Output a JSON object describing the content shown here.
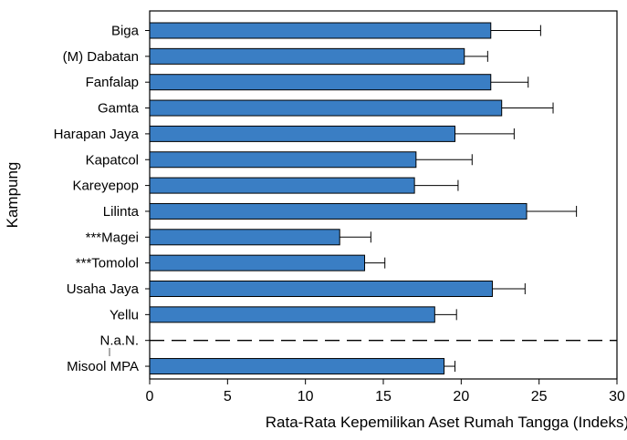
{
  "chart_data": {
    "type": "bar",
    "orientation": "horizontal",
    "title": "",
    "xlabel": "Rata-Rata Kepemilikan Aset Rumah Tangga (Indeks)",
    "ylabel": "Kampung",
    "xlim": [
      0,
      30
    ],
    "xticks": [
      0,
      5,
      10,
      15,
      20,
      25,
      30
    ],
    "grid": false,
    "legend": "none",
    "bar_color": "#3a7ec4",
    "categories": [
      "Biga",
      "(M) Dabatan",
      "Fanfalap",
      "Gamta",
      "Harapan Jaya",
      "Kapatcol",
      "Kareyepop",
      "Lilinta",
      "***Magei",
      "***Tomolol",
      "Usaha Jaya",
      "Yellu",
      "N.a.N.",
      "Misool MPA"
    ],
    "values": [
      21.9,
      20.2,
      21.9,
      22.6,
      19.6,
      17.1,
      17.0,
      24.2,
      12.2,
      13.8,
      22.0,
      18.3,
      null,
      18.9
    ],
    "error": [
      3.2,
      1.5,
      2.4,
      3.3,
      3.8,
      3.6,
      2.8,
      3.2,
      2.0,
      1.3,
      2.1,
      1.4,
      null,
      0.7
    ],
    "reference_line": {
      "category": "N.a.N.",
      "style": "dashed"
    }
  }
}
